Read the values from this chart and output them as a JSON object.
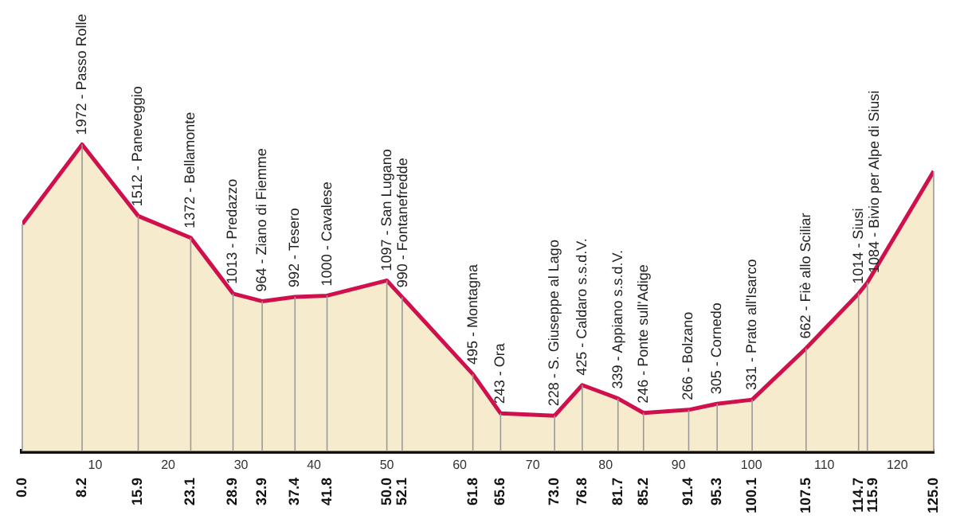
{
  "chart_data": {
    "type": "area",
    "x": [
      0,
      8.2,
      15.9,
      23.1,
      28.9,
      32.9,
      37.4,
      41.8,
      50.0,
      52.1,
      61.8,
      65.6,
      73.0,
      76.8,
      81.7,
      85.2,
      91.4,
      95.3,
      100.1,
      107.5,
      114.7,
      115.9,
      125.0
    ],
    "series": [
      {
        "color": "#d0104c",
        "values": [
          1460,
          1972,
          1512,
          1372,
          1013,
          964,
          992,
          1000,
          1097,
          990,
          495,
          243,
          228,
          425,
          339,
          246,
          266,
          305,
          331,
          662,
          1014,
          1084,
          1800
        ],
        "value_labels": [
          null,
          "1972 - Passo Rolle",
          "1512 - Paneveggio",
          "1372 - Bellamonte",
          "1013 - Predazzo",
          "964 - Ziano di Fiemme",
          "992 - Tesero",
          "1000 - Cavalese",
          "1097 - San Lugano",
          "990 - Fontanefredde",
          "495 - Montagna",
          "243 - Ora",
          "228 - S. Giuseppe al Lago",
          "425 - Caldaro s.s.d.V.",
          "339 - Appiano s.s.d.V.",
          "246 - Ponte sull'Adige",
          "266 - Bolzano",
          "305 - Cornedo",
          "331 - Prato all'Isarco",
          "662 - Fiè allo Sciliar",
          "1014 - Siusi",
          "1084 - Bivio per Alpe di Siusi",
          null
        ]
      }
    ],
    "xlim": [
      0,
      125
    ],
    "xticks": [
      {
        "value": 0,
        "label": "0.0"
      },
      {
        "value": 8.2,
        "label": "8.2"
      },
      {
        "value": 15.9,
        "label": "15.9"
      },
      {
        "value": 23.1,
        "label": "23.1"
      },
      {
        "value": 28.9,
        "label": "28.9"
      },
      {
        "value": 32.9,
        "label": "32.9"
      },
      {
        "value": 37.4,
        "label": "37.4"
      },
      {
        "value": 41.8,
        "label": "41.8"
      },
      {
        "value": 50,
        "label": "50.0"
      },
      {
        "value": 52.1,
        "label": "52.1"
      },
      {
        "value": 61.8,
        "label": "61.8"
      },
      {
        "value": 65.6,
        "label": "65.6"
      },
      {
        "value": 73.0,
        "label": "73.0"
      },
      {
        "value": 76.8,
        "label": "76.8"
      },
      {
        "value": 81.7,
        "label": "81.7"
      },
      {
        "value": 85.2,
        "label": "85.2"
      },
      {
        "value": 91.4,
        "label": "91.4"
      },
      {
        "value": 95.3,
        "label": "95.3"
      },
      {
        "value": 100.1,
        "label": "100.1"
      },
      {
        "value": 107.5,
        "label": "107.5"
      },
      {
        "value": 114.7,
        "label": "114.7"
      },
      {
        "value": 115.9,
        "label": "115.9"
      },
      {
        "value": 125,
        "label": "125.0"
      }
    ],
    "x2lim": [
      0,
      125
    ],
    "x2ticks": [
      10,
      20,
      30,
      40,
      50,
      60,
      70,
      80,
      90,
      100,
      110,
      120
    ],
    "tick_labels": "x",
    "grid": "x",
    "legend": false,
    "marker": "none",
    "line_style": "solid"
  }
}
